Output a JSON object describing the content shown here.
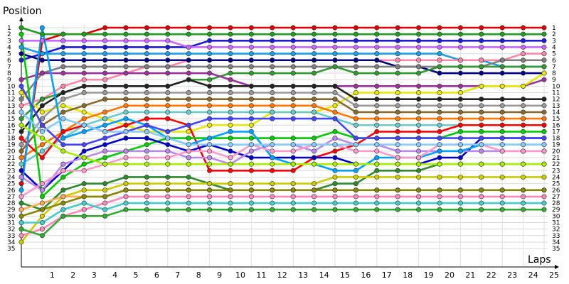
{
  "chart_data": {
    "type": "line",
    "ylabel": "Position",
    "xlabel": "Laps",
    "grid": true,
    "legend": "none",
    "x_ticks": [
      "1",
      "2",
      "3",
      "4",
      "5",
      "6",
      "7",
      "8",
      "9",
      "10",
      "11",
      "12",
      "13",
      "14",
      "15",
      "16",
      "17",
      "18",
      "19",
      "20",
      "21",
      "22",
      "23",
      "24",
      "25"
    ],
    "y_ticks_left": [
      "1",
      "2",
      "3",
      "4",
      "5",
      "6",
      "7",
      "8",
      "9",
      "10",
      "11",
      "12",
      "13",
      "14",
      "15",
      "16",
      "17",
      "18",
      "19",
      "20",
      "21",
      "22",
      "23",
      "24",
      "25",
      "26",
      "27",
      "28",
      "29",
      "30",
      "31",
      "32",
      "33",
      "34",
      "35"
    ],
    "y_ticks_right": [
      "1",
      "2",
      "3",
      "4",
      "5",
      "6",
      "7",
      "8",
      "9",
      "10",
      "11",
      "12",
      "13",
      "14",
      "15",
      "16",
      "17",
      "18",
      "19",
      "20",
      "21",
      "22",
      "23",
      "24",
      "25",
      "26",
      "27",
      "28",
      "29",
      "30",
      "31",
      "32",
      "33",
      "34",
      "35"
    ],
    "x_range": [
      0,
      26
    ],
    "y_range": [
      1,
      35
    ],
    "y_inverted": true,
    "start_column": 0,
    "series": [
      {
        "color": "#e00000",
        "positions": [
          25,
          3,
          2,
          2,
          1,
          1,
          1,
          1,
          1,
          1,
          1,
          1,
          1,
          1,
          1,
          1,
          1,
          1,
          1,
          1,
          1,
          1,
          1,
          1,
          1,
          1
        ]
      },
      {
        "color": "#1f9f1f",
        "positions": [
          1,
          2,
          2,
          2,
          2,
          2,
          2,
          2,
          2,
          2,
          2,
          2,
          2,
          2,
          2,
          2,
          2,
          2,
          2,
          2,
          2,
          2,
          2,
          2,
          2,
          2
        ]
      },
      {
        "color": "#1c1cd4",
        "positions": [
          6,
          5,
          4,
          4,
          4,
          4,
          4,
          4,
          4,
          3,
          3,
          3,
          3,
          3,
          3,
          3,
          3,
          3,
          3,
          3,
          3,
          3,
          3,
          3,
          3,
          3
        ]
      },
      {
        "color": "#cc66ff",
        "positions": [
          3,
          3,
          3,
          3,
          3,
          3,
          3,
          3,
          4,
          4,
          4,
          4,
          4,
          4,
          4,
          4,
          4,
          4,
          4,
          4,
          4,
          4,
          4,
          4,
          4,
          4
        ]
      },
      {
        "color": "#1a9fe8",
        "positions": [
          4,
          5,
          5,
          5,
          5,
          5,
          5,
          5,
          5,
          5,
          5,
          5,
          5,
          5,
          5,
          5,
          5,
          5,
          5,
          5,
          5,
          6,
          6,
          7,
          7,
          7
        ]
      },
      {
        "color": "#ff88aa",
        "positions": [
          13,
          12,
          10,
          9,
          9,
          8,
          7,
          7,
          6,
          6,
          6,
          6,
          6,
          6,
          6,
          6,
          6,
          6,
          6,
          6,
          6,
          6,
          6,
          6,
          5,
          5
        ]
      },
      {
        "color": "#000080",
        "positions": [
          5,
          6,
          6,
          6,
          6,
          6,
          6,
          6,
          6,
          6,
          6,
          6,
          6,
          6,
          6,
          6,
          6,
          6,
          7,
          7,
          8,
          8,
          8,
          8,
          8,
          8
        ]
      },
      {
        "color": "#808080",
        "positions": [
          12,
          8,
          7,
          7,
          7,
          7,
          7,
          7,
          7,
          7,
          7,
          7,
          7,
          7,
          7,
          7,
          7,
          7,
          7,
          7,
          7,
          7,
          7,
          6,
          6,
          6
        ]
      },
      {
        "color": "#339933",
        "positions": [
          15,
          12,
          11,
          10,
          10,
          10,
          10,
          10,
          9,
          9,
          8,
          8,
          8,
          8,
          8,
          7,
          8,
          8,
          8,
          8,
          7,
          7,
          7,
          7,
          7,
          7
        ]
      },
      {
        "color": "#993399",
        "positions": [
          9,
          8,
          8,
          8,
          8,
          8,
          8,
          8,
          8,
          8,
          9,
          10,
          10,
          10,
          10,
          10,
          10,
          10,
          10,
          10,
          10,
          10,
          10,
          10,
          10,
          9
        ]
      },
      {
        "color": "#e8e800",
        "positions": [
          11,
          14,
          13,
          14,
          15,
          16,
          17,
          17,
          17,
          16,
          16,
          16,
          14,
          14,
          14,
          13,
          11,
          11,
          11,
          11,
          11,
          11,
          10,
          10,
          10,
          8
        ]
      },
      {
        "color": "#222222",
        "positions": [
          17,
          13,
          11,
          10,
          10,
          10,
          10,
          10,
          9,
          10,
          10,
          10,
          10,
          10,
          10,
          10,
          12,
          12,
          12,
          12,
          12,
          12,
          12,
          12,
          12,
          12
        ]
      },
      {
        "color": "#999999",
        "positions": [
          19,
          15,
          12,
          11,
          11,
          11,
          11,
          11,
          11,
          11,
          11,
          11,
          11,
          11,
          11,
          11,
          13,
          13,
          13,
          13,
          13,
          13,
          13,
          13,
          13,
          13
        ]
      },
      {
        "color": "#8a6a2a",
        "positions": [
          20,
          16,
          14,
          13,
          12,
          12,
          12,
          12,
          12,
          12,
          12,
          12,
          12,
          12,
          12,
          12,
          14,
          14,
          14,
          14,
          14,
          14,
          14,
          14,
          14,
          14
        ]
      },
      {
        "color": "#ff7700",
        "positions": [
          21,
          19,
          17,
          15,
          14,
          13,
          13,
          13,
          13,
          13,
          13,
          13,
          13,
          13,
          13,
          14,
          15,
          15,
          15,
          15,
          15,
          15,
          15,
          15,
          15,
          15
        ]
      },
      {
        "color": "#66cccc",
        "positions": [
          22,
          20,
          18,
          16,
          15,
          14,
          14,
          14,
          14,
          14,
          14,
          14,
          14,
          14,
          14,
          15,
          16,
          16,
          16,
          16,
          16,
          16,
          16,
          16,
          16,
          16
        ]
      },
      {
        "color": "#ff0000",
        "positions": [
          18,
          21,
          17,
          16,
          17,
          16,
          15,
          15,
          16,
          23,
          23,
          23,
          23,
          23,
          21,
          20,
          19,
          17,
          17,
          17,
          17,
          16,
          16,
          16,
          16,
          16
        ]
      },
      {
        "color": "#00cc00",
        "positions": [
          2,
          27,
          24,
          22,
          21,
          20,
          19,
          18,
          18,
          18,
          18,
          18,
          18,
          18,
          18,
          17,
          18,
          18,
          18,
          18,
          18,
          17,
          17,
          17,
          17,
          17
        ]
      },
      {
        "color": "#0000cc",
        "positions": [
          23,
          26,
          23,
          20,
          19,
          18,
          18,
          19,
          20,
          19,
          20,
          21,
          21,
          21,
          21,
          21,
          22,
          22,
          22,
          22,
          21,
          21,
          18,
          18,
          18,
          18
        ]
      },
      {
        "color": "#bb88ee",
        "positions": [
          24,
          26,
          22,
          21,
          20,
          20,
          20,
          20,
          21,
          21,
          22,
          20,
          19,
          19,
          20,
          18,
          19,
          19,
          20,
          20,
          20,
          20,
          20,
          20,
          20,
          20
        ]
      },
      {
        "color": "#00a0ff",
        "positions": [
          26,
          1,
          18,
          17,
          16,
          15,
          16,
          18,
          19,
          18,
          17,
          17,
          21,
          22,
          22,
          23,
          23,
          21,
          21,
          21,
          20,
          20,
          19,
          19,
          19,
          19
        ]
      },
      {
        "color": "#ff99cc",
        "positions": [
          27,
          25,
          23,
          23,
          22,
          21,
          21,
          21,
          20,
          20,
          21,
          19,
          20,
          20,
          19,
          19,
          20,
          20,
          21,
          21,
          19,
          19,
          19,
          20,
          20,
          20
        ]
      },
      {
        "color": "#2d8a2d",
        "positions": [
          28,
          29,
          26,
          25,
          25,
          24,
          24,
          24,
          24,
          25,
          26,
          26,
          26,
          26,
          26,
          25,
          25,
          23,
          23,
          23,
          22,
          22,
          22,
          22,
          22,
          22
        ]
      },
      {
        "color": "#4444ff",
        "positions": [
          10,
          16,
          19,
          19,
          18,
          17,
          16,
          17,
          16,
          15,
          15,
          15,
          15,
          15,
          15,
          15,
          18,
          18,
          18,
          18,
          18,
          18,
          18,
          18,
          18,
          18
        ]
      },
      {
        "color": "#cccc00",
        "positions": [
          34,
          30,
          27,
          26,
          26,
          25,
          25,
          25,
          25,
          25,
          25,
          25,
          25,
          25,
          25,
          24,
          24,
          24,
          24,
          24,
          24,
          24,
          24,
          24,
          24,
          24
        ]
      },
      {
        "color": "#88ccff",
        "positions": [
          14,
          17,
          15,
          16,
          17,
          17,
          17,
          18,
          19,
          19,
          19,
          19,
          19,
          19,
          19,
          19,
          19,
          19,
          19,
          19,
          19,
          19,
          19,
          19,
          19,
          19
        ]
      },
      {
        "color": "#aaee00",
        "positions": [
          16,
          18,
          20,
          21,
          22,
          22,
          22,
          22,
          22,
          22,
          22,
          22,
          22,
          22,
          22,
          22,
          22,
          22,
          22,
          22,
          22,
          22,
          22,
          22,
          22,
          22
        ]
      },
      {
        "color": "#ffaa55",
        "positions": [
          29,
          28,
          27,
          27,
          27,
          26,
          26,
          26,
          26,
          26,
          26,
          26,
          26,
          26,
          26,
          26,
          26,
          26,
          26,
          26,
          26,
          26,
          26,
          26,
          26,
          26
        ]
      },
      {
        "color": "#ff88bb",
        "positions": [
          33,
          32,
          30,
          29,
          28,
          27,
          27,
          27,
          27,
          27,
          27,
          27,
          27,
          27,
          27,
          27,
          27,
          27,
          27,
          27,
          27,
          27,
          27,
          27,
          27,
          27
        ]
      },
      {
        "color": "#44cccc",
        "positions": [
          31,
          31,
          29,
          28,
          29,
          28,
          28,
          28,
          28,
          28,
          28,
          28,
          28,
          28,
          28,
          28,
          28,
          28,
          28,
          28,
          28,
          28,
          28,
          28,
          28,
          28
        ]
      },
      {
        "color": "#33aa33",
        "positions": [
          32,
          33,
          30,
          30,
          30,
          29,
          29,
          29,
          29,
          29,
          29,
          29,
          29,
          29,
          29,
          29,
          29,
          29,
          29,
          29,
          29,
          29,
          29,
          29,
          29,
          29
        ]
      },
      {
        "color": "#888800",
        "positions": [
          30,
          29,
          28,
          27,
          27,
          26,
          26,
          26,
          26,
          26,
          26,
          26,
          26,
          26,
          26,
          26,
          26,
          26,
          26,
          26,
          26,
          26,
          26,
          26,
          26,
          26
        ]
      }
    ]
  }
}
